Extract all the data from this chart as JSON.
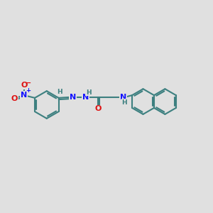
{
  "bg_color": "#e0e0e0",
  "bond_color": "#3d8080",
  "bond_width": 1.5,
  "n_color": "#1414ff",
  "o_color": "#dd1111",
  "font_size_atom": 8.0,
  "font_size_h": 6.5,
  "fig_width": 3.0,
  "fig_height": 3.0,
  "dpi": 100,
  "xlim": [
    0,
    12
  ],
  "ylim": [
    0,
    10
  ]
}
